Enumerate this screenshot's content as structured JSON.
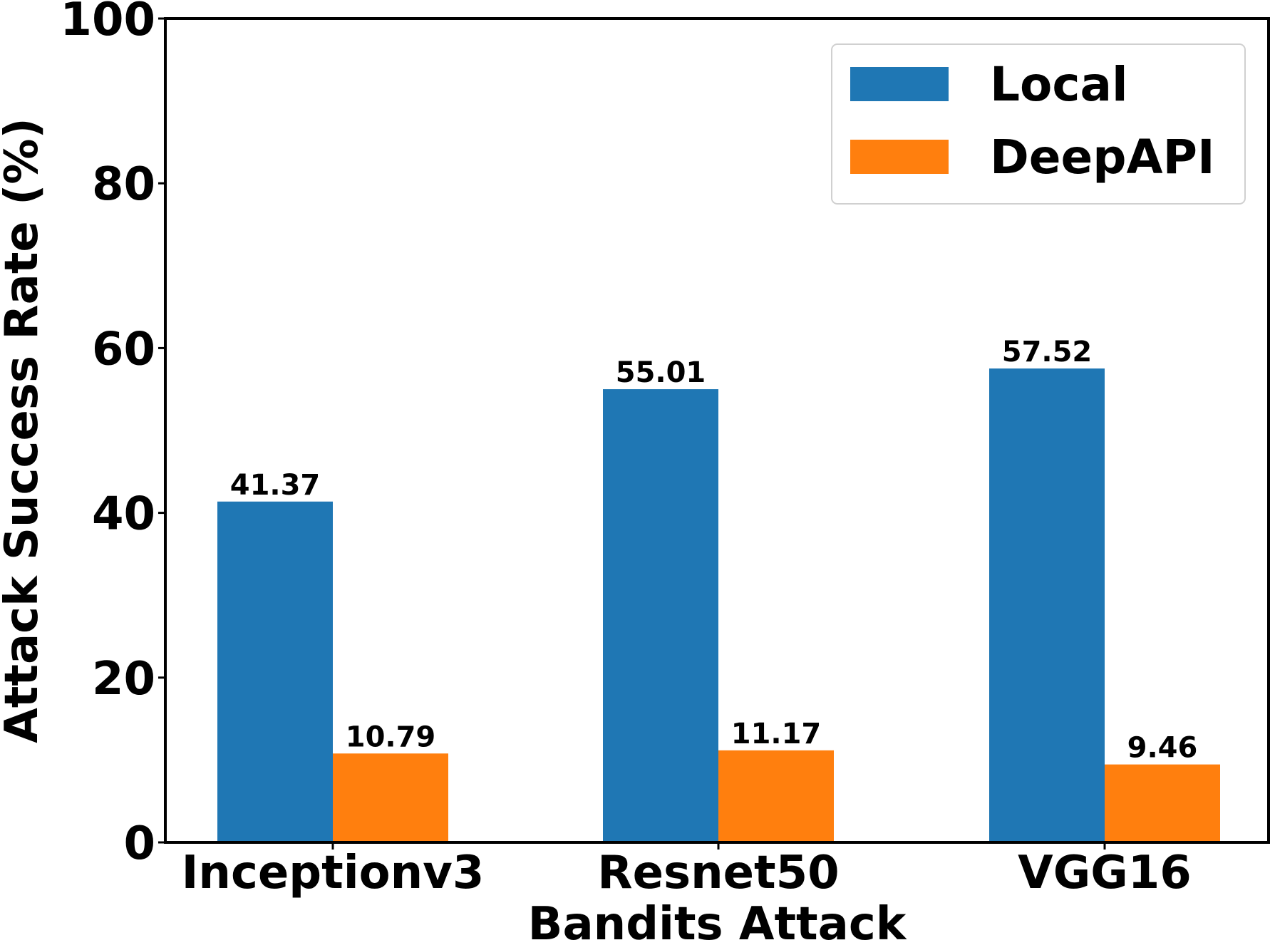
{
  "chart_data": {
    "type": "bar",
    "categories": [
      "Inceptionv3",
      "Resnet50",
      "VGG16"
    ],
    "series": [
      {
        "name": "Local",
        "color": "#1f77b4",
        "values": [
          41.37,
          55.01,
          57.52
        ]
      },
      {
        "name": "DeepAPI",
        "color": "#ff7f0e",
        "values": [
          10.79,
          11.17,
          9.46
        ]
      }
    ],
    "value_labels": [
      [
        "41.37",
        "55.01",
        "57.52"
      ],
      [
        "10.79",
        "11.17",
        "9.46"
      ]
    ],
    "xlabel": "Bandits Attack",
    "ylabel": "Attack Success Rate (%)",
    "ylim": [
      0,
      100
    ],
    "yticks": [
      0,
      20,
      40,
      60,
      80,
      100
    ],
    "grid": false,
    "legend_position": "top-right"
  }
}
